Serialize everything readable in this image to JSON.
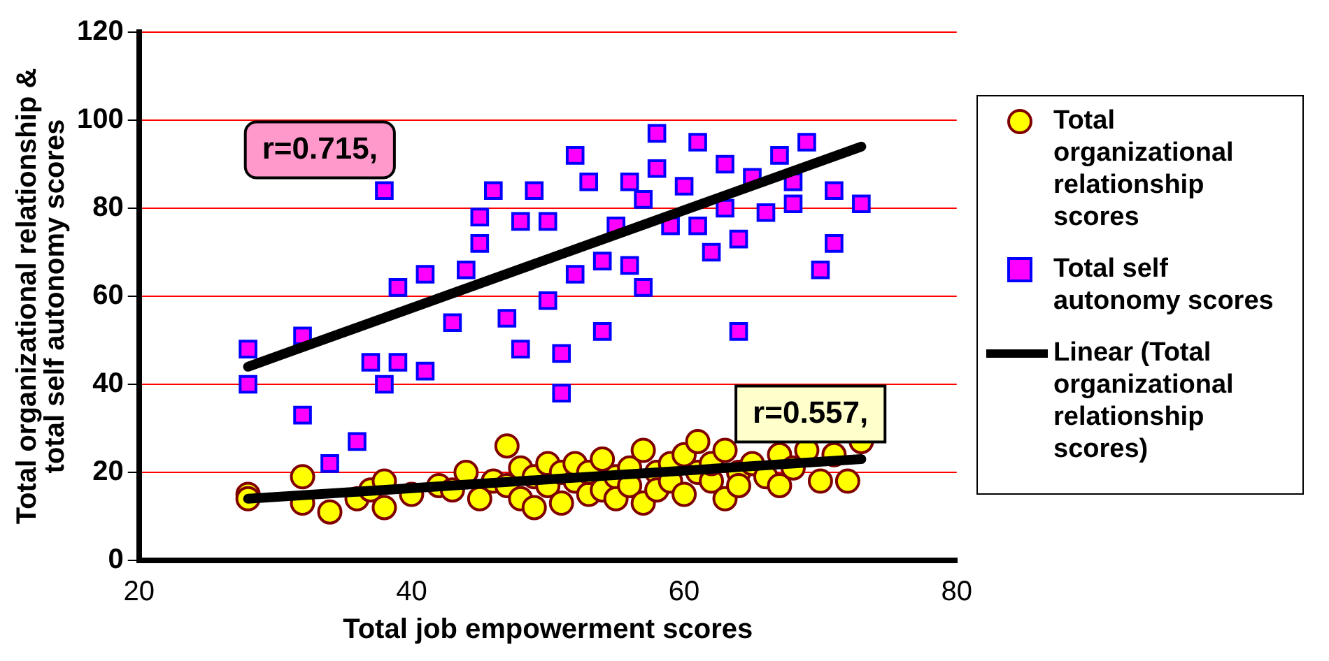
{
  "chart_data": {
    "type": "scatter",
    "xlabel": "Total job empowerment scores",
    "ylabel": "Total organizational relationship & total self autonomy scores",
    "xlim": [
      20,
      80
    ],
    "xticks": [
      20,
      40,
      60,
      80
    ],
    "ylim": [
      0,
      120
    ],
    "yticks": [
      0,
      20,
      40,
      60,
      80,
      100,
      120
    ],
    "grid": "y",
    "legend": "right",
    "annotations": [
      "r=0.715,",
      "r=0.557,"
    ],
    "series": [
      {
        "name": "Total organizational relationship scores",
        "type": "scatter",
        "marker": "circle",
        "color": "#ffff00",
        "x": [
          28,
          28,
          32,
          32,
          34,
          36,
          37,
          38,
          38,
          40,
          42,
          43,
          44,
          45,
          46,
          47,
          47,
          48,
          48,
          49,
          49,
          50,
          50,
          51,
          51,
          52,
          52,
          53,
          53,
          54,
          54,
          55,
          55,
          56,
          56,
          57,
          57,
          58,
          58,
          59,
          59,
          60,
          60,
          61,
          61,
          62,
          62,
          63,
          63,
          64,
          64,
          65,
          66,
          67,
          67,
          68,
          69,
          70,
          71,
          72,
          73
        ],
        "values": [
          15,
          14,
          19,
          13,
          11,
          14,
          16,
          18,
          12,
          15,
          17,
          16,
          20,
          14,
          18,
          26,
          17,
          21,
          14,
          19,
          12,
          22,
          17,
          20,
          13,
          18,
          22,
          15,
          20,
          16,
          23,
          19,
          14,
          21,
          17,
          25,
          13,
          20,
          16,
          22,
          18,
          24,
          15,
          20,
          27,
          18,
          22,
          25,
          14,
          20,
          17,
          22,
          19,
          24,
          17,
          21,
          25,
          18,
          24,
          18,
          27
        ]
      },
      {
        "name": "Total self autonomy scores",
        "type": "scatter",
        "marker": "square",
        "color": "#ff00ff",
        "x": [
          28,
          28,
          32,
          32,
          34,
          36,
          37,
          38,
          39,
          38,
          39,
          41,
          41,
          43,
          44,
          45,
          45,
          46,
          47,
          48,
          48,
          49,
          50,
          50,
          51,
          51,
          52,
          52,
          53,
          54,
          54,
          55,
          56,
          56,
          57,
          57,
          58,
          58,
          59,
          60,
          61,
          61,
          62,
          63,
          63,
          64,
          64,
          65,
          66,
          67,
          68,
          69,
          70,
          71,
          71,
          73,
          68
        ],
        "values": [
          48,
          40,
          51,
          33,
          22,
          27,
          45,
          40,
          45,
          84,
          62,
          43,
          65,
          54,
          66,
          78,
          72,
          84,
          55,
          48,
          77,
          84,
          59,
          77,
          38,
          47,
          92,
          65,
          86,
          52,
          68,
          76,
          86,
          67,
          62,
          82,
          97,
          89,
          76,
          85,
          95,
          76,
          70,
          90,
          80,
          52,
          73,
          87,
          79,
          92,
          81,
          95,
          66,
          72,
          84,
          81,
          86
        ]
      },
      {
        "name": "Linear (Total organizational relationship scores)",
        "type": "line",
        "marker": "none",
        "line_style": "solid",
        "color": "#000000",
        "x": [
          28,
          73
        ],
        "values": [
          14,
          23
        ]
      },
      {
        "type": "line",
        "marker": "none",
        "line_style": "solid",
        "color": "#000000",
        "x": [
          28,
          73
        ],
        "values": [
          44,
          94
        ]
      }
    ]
  }
}
